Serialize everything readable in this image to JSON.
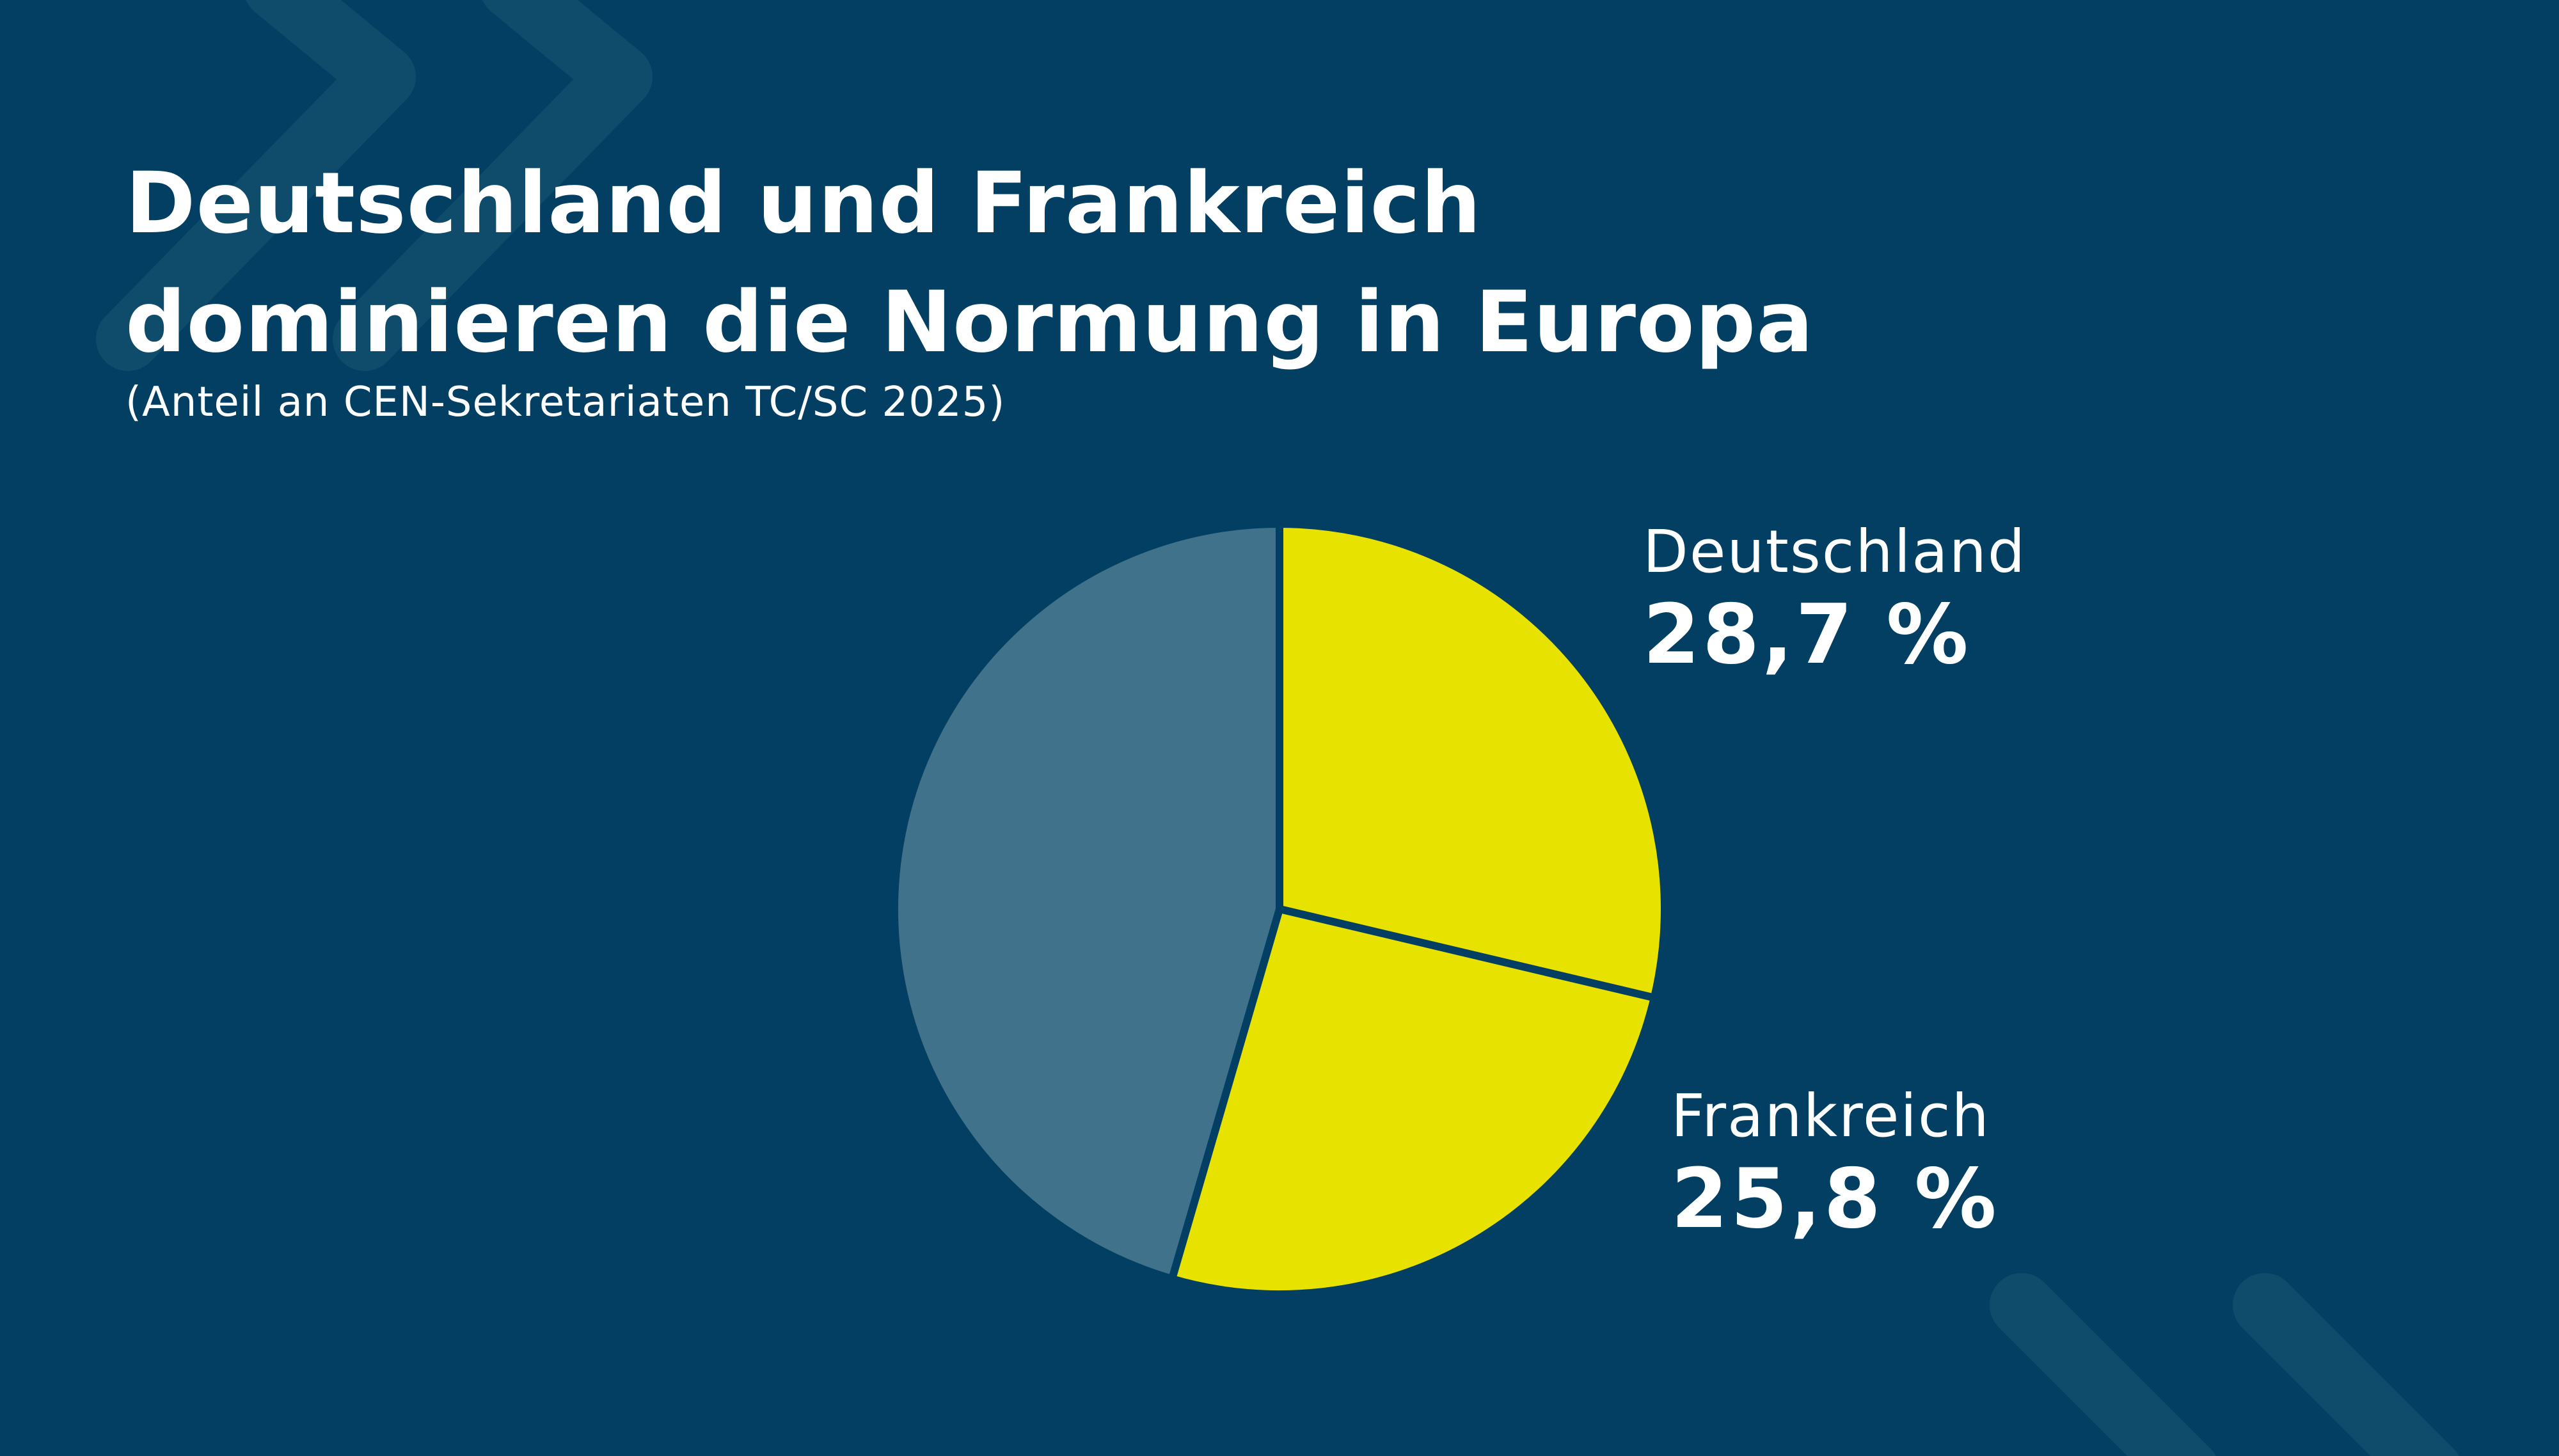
{
  "title_lines": [
    "Deutschland und Frankreich",
    "dominieren die Normung in Europa"
  ],
  "subtitle": "(Anteil an CEN-Sekretariaten TC/SC 2025)",
  "colors": {
    "background": "#023f62",
    "highlight": "#e8e200",
    "rest": "#41728b",
    "decoration": "#0f4b6b"
  },
  "chart_data": {
    "type": "pie",
    "title": "Deutschland und Frankreich dominieren die Normung in Europa",
    "subtitle": "(Anteil an CEN-Sekretariaten TC/SC 2025)",
    "start": "top, clockwise",
    "slices": [
      {
        "label": "Deutschland",
        "value": 28.7,
        "value_label": "28,7 %",
        "color": "#e8e200"
      },
      {
        "label": "Frankreich",
        "value": 25.8,
        "value_label": "25,8 %",
        "color": "#e8e200"
      },
      {
        "label": "",
        "value": 45.5,
        "color": "#41728b"
      }
    ]
  }
}
